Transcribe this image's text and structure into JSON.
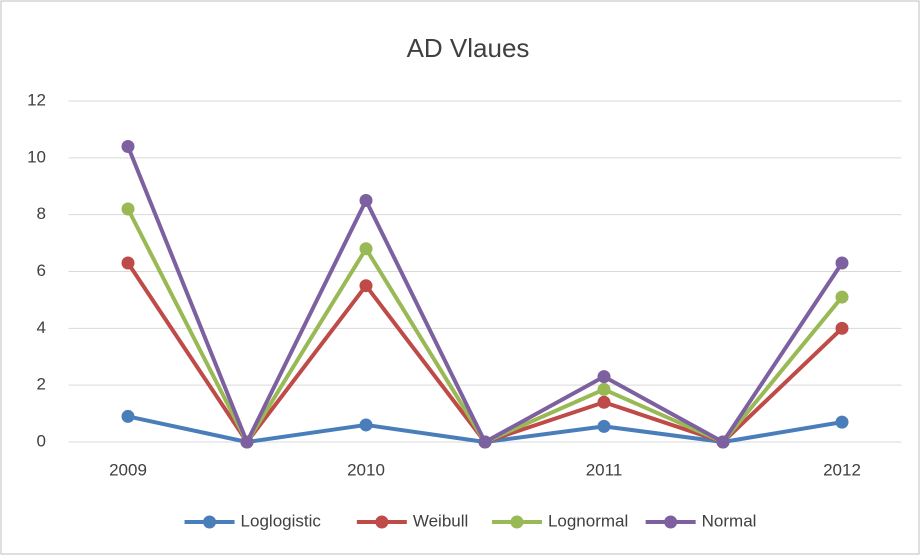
{
  "chart_data": {
    "type": "line",
    "title": "AD Vlaues",
    "categories": [
      "2009",
      null,
      "2010",
      null,
      "2011",
      null,
      "2012"
    ],
    "series": [
      {
        "name": "Loglogistic",
        "color": "#4a7ebb",
        "values": [
          0.9,
          0,
          0.6,
          0,
          0.55,
          0,
          0.7
        ]
      },
      {
        "name": "Weibull",
        "color": "#be4b48",
        "values": [
          6.3,
          0,
          5.5,
          0,
          1.4,
          0,
          4.0
        ]
      },
      {
        "name": "Lognormal",
        "color": "#98b954",
        "values": [
          8.2,
          0,
          6.8,
          0,
          1.85,
          0,
          5.1
        ]
      },
      {
        "name": "Normal",
        "color": "#7d60a0",
        "values": [
          10.4,
          0,
          8.5,
          0,
          2.3,
          0,
          6.3
        ]
      }
    ],
    "ylim": [
      0,
      12
    ],
    "yticks": [
      0,
      2,
      4,
      6,
      8,
      10,
      12
    ],
    "grid": true,
    "legend": "bottom"
  }
}
